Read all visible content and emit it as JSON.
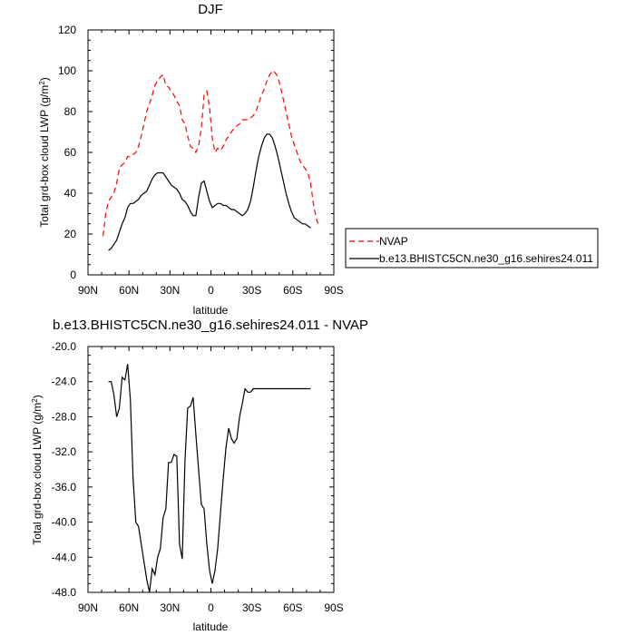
{
  "chart_data": [
    {
      "type": "line",
      "title": "DJF",
      "xlabel": "latitude",
      "ylabel_prefix": "Total grd-box cloud LWP (g/m",
      "ylabel_sup": "2",
      "ylabel_suffix": ")",
      "xlim": [
        90,
        -90
      ],
      "ylim": [
        0,
        120
      ],
      "xticks": [
        {
          "value": 90,
          "label": "90N"
        },
        {
          "value": 60,
          "label": "60N"
        },
        {
          "value": 30,
          "label": "30N"
        },
        {
          "value": 0,
          "label": "0"
        },
        {
          "value": -30,
          "label": "30S"
        },
        {
          "value": -60,
          "label": "60S"
        },
        {
          "value": -90,
          "label": "90S"
        }
      ],
      "yticks": [
        {
          "value": 0,
          "label": "0"
        },
        {
          "value": 20,
          "label": "20"
        },
        {
          "value": 40,
          "label": "40"
        },
        {
          "value": 60,
          "label": "60"
        },
        {
          "value": 80,
          "label": "80"
        },
        {
          "value": 100,
          "label": "100"
        },
        {
          "value": 120,
          "label": "120"
        }
      ],
      "legend_position": "right",
      "series": [
        {
          "name": "NVAP",
          "color": "#ff0000",
          "dash": true,
          "x": [
            79,
            77,
            75,
            73,
            71,
            69,
            67,
            65,
            63,
            61,
            59,
            57,
            55,
            53,
            51,
            49,
            47,
            45,
            43,
            41,
            39,
            37,
            35,
            33,
            31,
            29,
            27,
            25,
            23,
            21,
            19,
            17,
            15,
            13,
            11,
            9,
            7,
            5,
            3,
            1,
            -1,
            -3,
            -5,
            -7,
            -9,
            -11,
            -13,
            -15,
            -17,
            -19,
            -21,
            -23,
            -25,
            -27,
            -29,
            -31,
            -33,
            -35,
            -37,
            -39,
            -41,
            -43,
            -45,
            -47,
            -49,
            -51,
            -53,
            -55,
            -57,
            -59,
            -61,
            -63,
            -65,
            -67,
            -69,
            -71,
            -73,
            -75,
            -77,
            -79
          ],
          "y": [
            19,
            30,
            36,
            38,
            40,
            45,
            52,
            54,
            55,
            58,
            58,
            59,
            60,
            63,
            68,
            74,
            80,
            84,
            88,
            93,
            95,
            97,
            98,
            93,
            92,
            90,
            88,
            85,
            83,
            76,
            74,
            68,
            63,
            62,
            60,
            63,
            72,
            88,
            90,
            82,
            67,
            60,
            62,
            61,
            63,
            66,
            68,
            70,
            72,
            73,
            74,
            76,
            76,
            76,
            77,
            78,
            80,
            84,
            88,
            91,
            95,
            98,
            100,
            99,
            97,
            92,
            86,
            80,
            74,
            68,
            64,
            60,
            56,
            54,
            52,
            50,
            45,
            35,
            28,
            24
          ]
        },
        {
          "name": "b.e13.BHISTC5CN.ne30_g16.sehires24.011",
          "color": "#000000",
          "dash": false,
          "x": [
            75,
            73,
            71,
            69,
            67,
            65,
            63,
            61,
            59,
            57,
            55,
            53,
            51,
            49,
            47,
            45,
            43,
            41,
            39,
            37,
            35,
            33,
            31,
            29,
            27,
            25,
            23,
            21,
            19,
            17,
            15,
            13,
            11,
            9,
            7,
            5,
            3,
            1,
            -1,
            -3,
            -5,
            -7,
            -9,
            -11,
            -13,
            -15,
            -17,
            -19,
            -21,
            -23,
            -25,
            -27,
            -29,
            -31,
            -33,
            -35,
            -37,
            -39,
            -41,
            -43,
            -45,
            -47,
            -49,
            -51,
            -53,
            -55,
            -57,
            -59,
            -61,
            -63,
            -65,
            -67,
            -69,
            -71,
            -73
          ],
          "y": [
            12,
            13,
            15,
            17,
            21,
            25,
            28,
            33,
            35,
            35,
            36,
            37,
            39,
            40,
            41,
            44,
            47,
            49,
            50,
            50,
            50,
            48,
            46,
            44,
            43,
            42,
            40,
            37,
            36,
            34,
            31,
            29,
            29,
            38,
            45,
            46,
            41,
            36,
            33,
            34,
            35,
            35,
            34,
            34,
            33,
            32,
            32,
            31,
            30,
            29,
            30,
            32,
            36,
            43,
            51,
            58,
            63,
            67,
            69,
            69,
            67,
            63,
            58,
            52,
            46,
            40,
            35,
            31,
            28,
            27,
            26,
            25,
            25,
            24,
            23
          ]
        }
      ]
    },
    {
      "type": "line",
      "title": "b.e13.BHISTC5CN.ne30_g16.sehires24.011 - NVAP",
      "xlabel": "latitude",
      "ylabel_prefix": "Total grd-box cloud LWP (g/m",
      "ylabel_sup": "2",
      "ylabel_suffix": ")",
      "xlim": [
        90,
        -90
      ],
      "ylim": [
        -48,
        -20
      ],
      "xticks": [
        {
          "value": 90,
          "label": "90N"
        },
        {
          "value": 60,
          "label": "60N"
        },
        {
          "value": 30,
          "label": "30N"
        },
        {
          "value": 0,
          "label": "0"
        },
        {
          "value": -30,
          "label": "30S"
        },
        {
          "value": -60,
          "label": "60S"
        },
        {
          "value": -90,
          "label": "90S"
        }
      ],
      "yticks": [
        {
          "value": -48,
          "label": "-48.0"
        },
        {
          "value": -44,
          "label": "-44.0"
        },
        {
          "value": -40,
          "label": "-40.0"
        },
        {
          "value": -36,
          "label": "-36.0"
        },
        {
          "value": -32,
          "label": "-32.0"
        },
        {
          "value": -28,
          "label": "-28.0"
        },
        {
          "value": -24,
          "label": "-24.0"
        },
        {
          "value": -20,
          "label": "-20.0"
        }
      ],
      "series": [
        {
          "name": "",
          "color": "#000000",
          "dash": false,
          "x": [
            75,
            73,
            71,
            69,
            67,
            65,
            63,
            61,
            59,
            57,
            55,
            53,
            51,
            49,
            47,
            45,
            43,
            41,
            39,
            37,
            35,
            33,
            31,
            29,
            27,
            25,
            23,
            21,
            19,
            17,
            15,
            13,
            11,
            9,
            7,
            5,
            3,
            1,
            -1,
            -3,
            -5,
            -7,
            -9,
            -11,
            -13,
            -15,
            -17,
            -19,
            -21,
            -23,
            -25,
            -27,
            -29,
            -31,
            -33,
            -35,
            -37,
            -39,
            -41,
            -43,
            -45,
            -47,
            -49,
            -51,
            -53,
            -55,
            -57,
            -59,
            -61,
            -63,
            -65,
            -67,
            -69,
            -71,
            -73
          ],
          "y": [
            -24.0,
            -24.0,
            -25.5,
            -28.0,
            -27.0,
            -23.5,
            -23.8,
            -22.0,
            -26.0,
            -35.0,
            -40.0,
            -40.5,
            -42.5,
            -44.5,
            -46.5,
            -48.0,
            -45.3,
            -46.0,
            -44.0,
            -43.0,
            -39.5,
            -38.5,
            -33.2,
            -33.2,
            -32.3,
            -32.5,
            -42.5,
            -44.2,
            -33.0,
            -27.0,
            -26.8,
            -25.8,
            -30.0,
            -34.0,
            -38.0,
            -38.5,
            -42.5,
            -45.5,
            -47.0,
            -45.5,
            -43.0,
            -39.0,
            -35.0,
            -31.5,
            -29.3,
            -30.5,
            -31.0,
            -30.5,
            -28.0,
            -26.5,
            -24.8,
            -25.2,
            -25.2,
            -24.8,
            -24.8,
            -24.8,
            -24.8,
            -24.8,
            -24.8,
            -24.8,
            -24.8,
            -24.8,
            -24.8,
            -24.8,
            -24.8,
            -24.8,
            -24.8,
            -24.8,
            -24.8,
            -24.8,
            -24.8,
            -24.8,
            -24.8,
            -24.8,
            -24.8
          ]
        }
      ]
    }
  ]
}
